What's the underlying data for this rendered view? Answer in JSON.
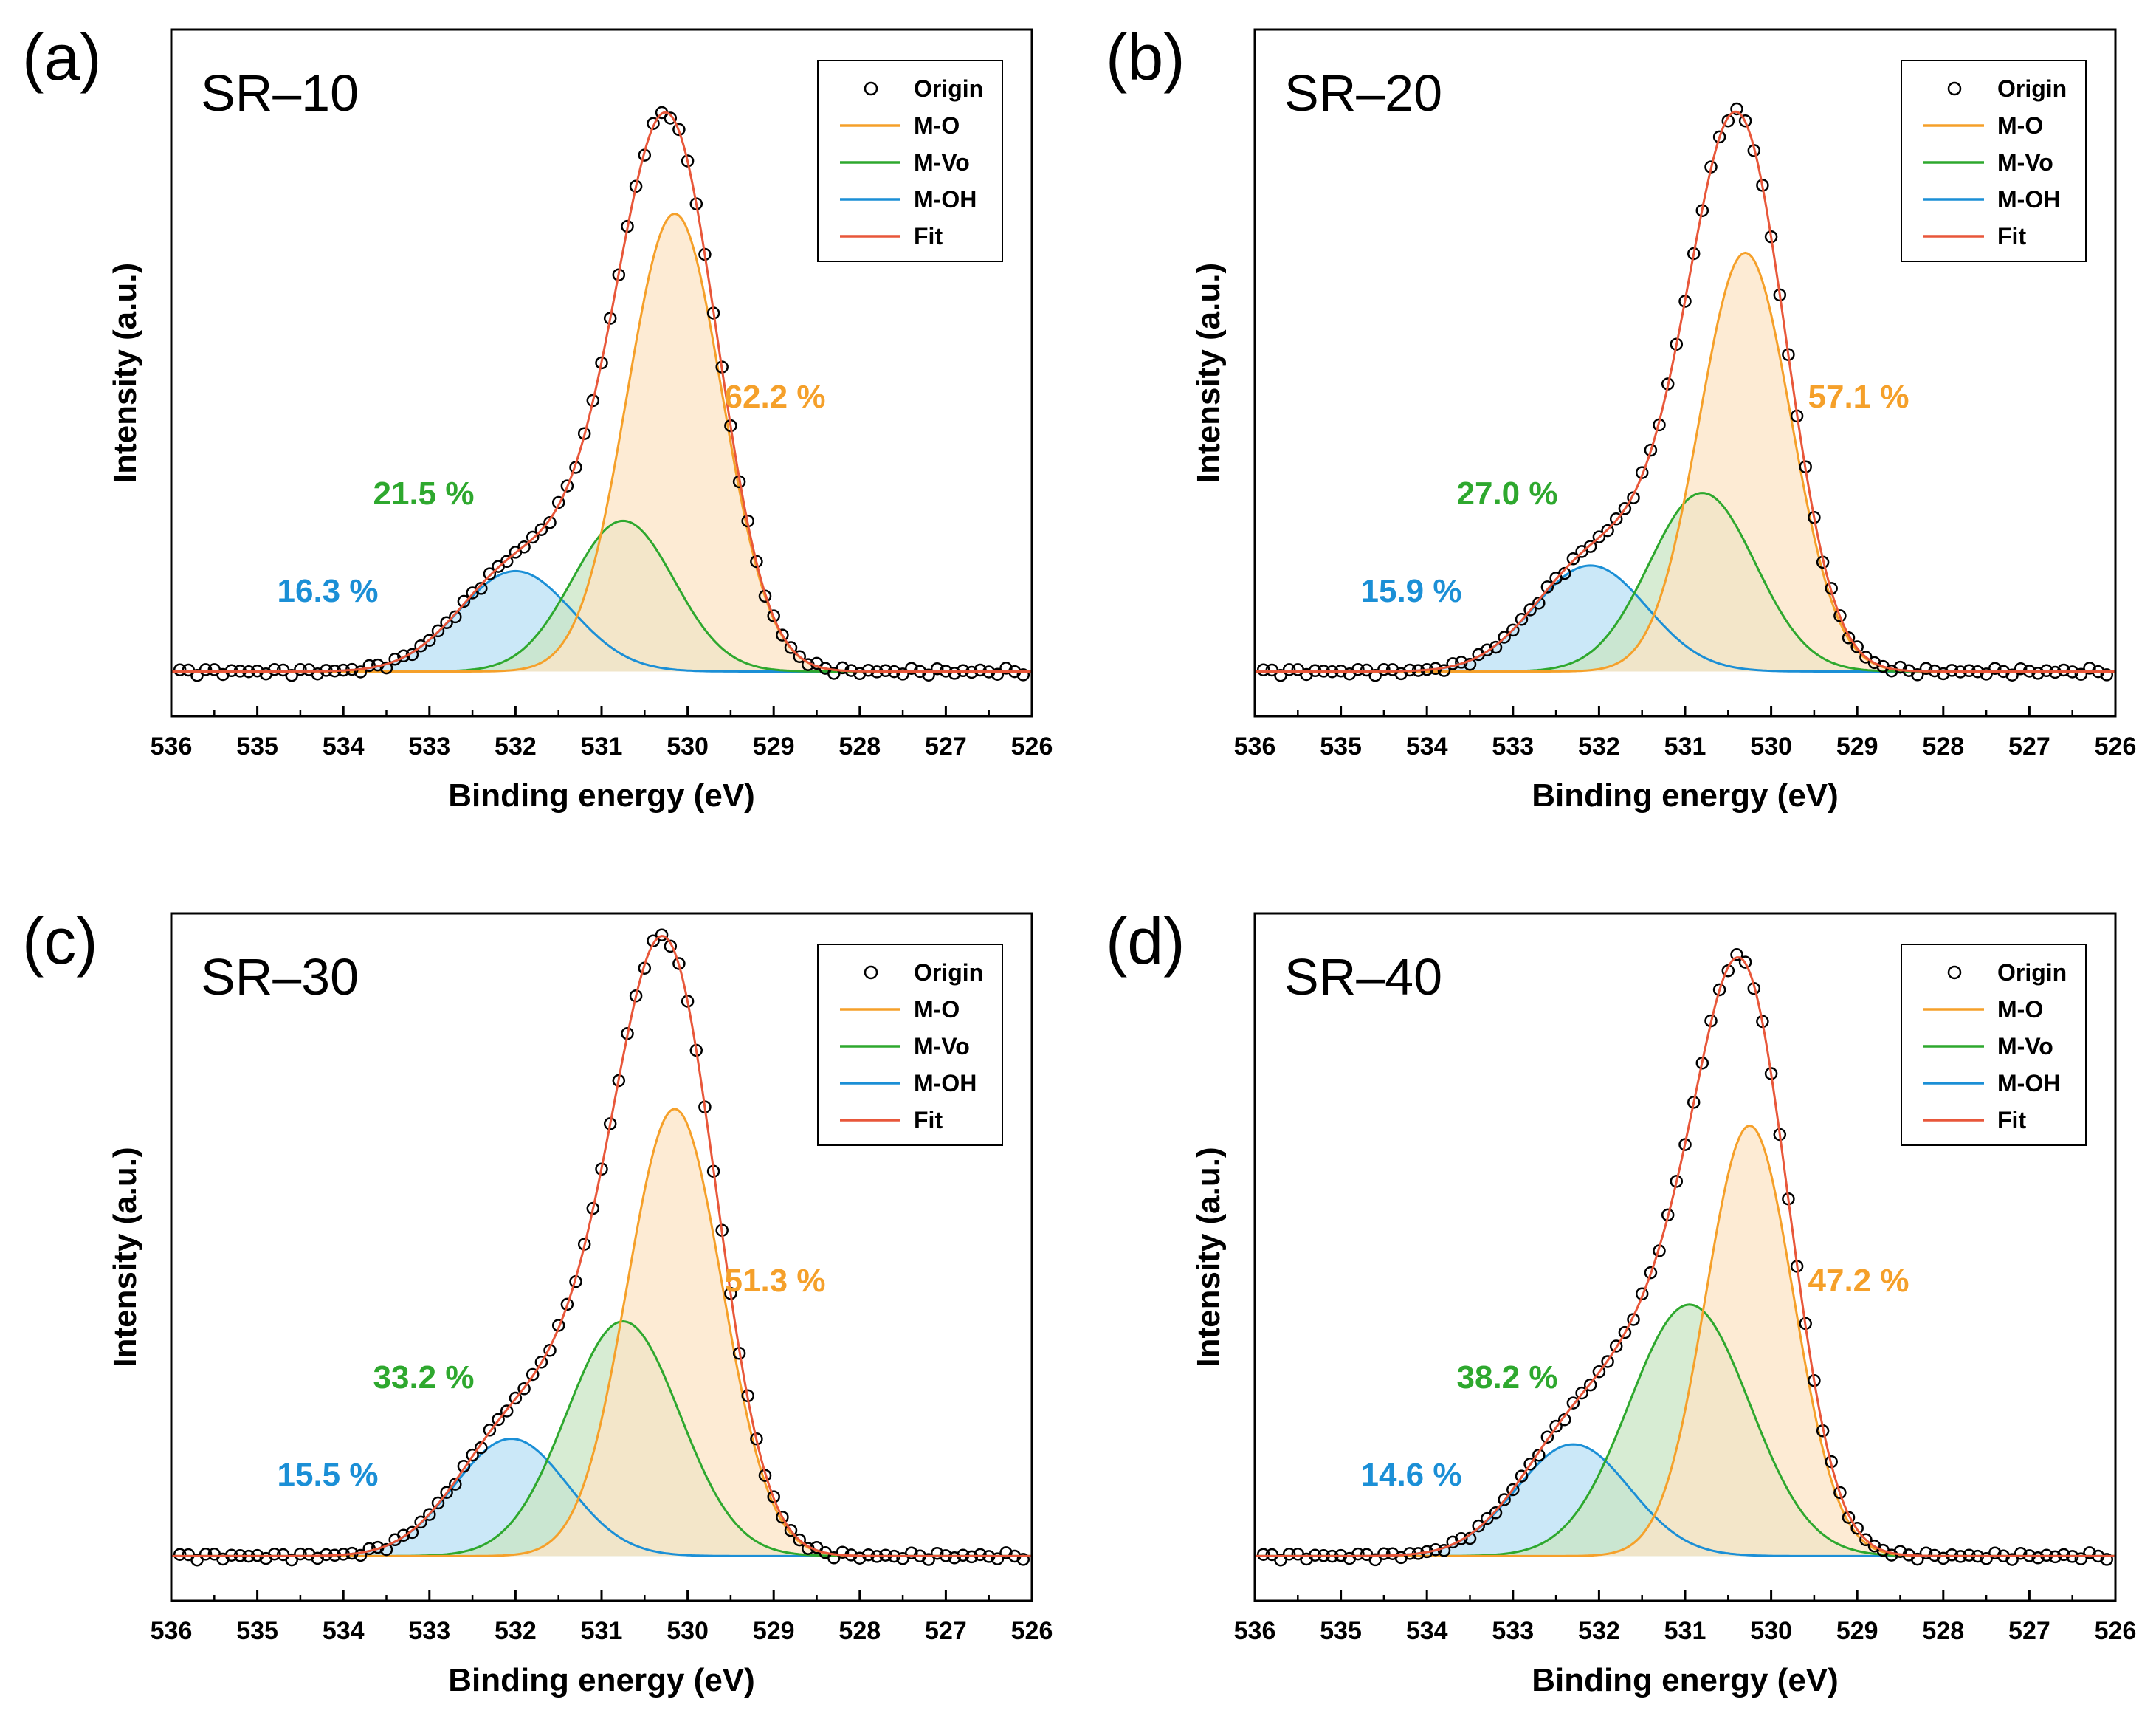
{
  "colors": {
    "m_o": "#F5A02A",
    "m_vo": "#2EA82E",
    "m_oh": "#1B8FD6",
    "fit": "#E8573A",
    "origin": "#000000",
    "fill_m_o": "#FCE4C6",
    "fill_m_vo": "#C9E6C4",
    "fill_m_oh": "#B9E0F5"
  },
  "legend": [
    "Origin",
    "M-O",
    "M-Vo",
    "M-OH",
    "Fit"
  ],
  "chart_data": [
    {
      "type": "line",
      "panel": "(a)",
      "sample": "SR–10",
      "xlabel": "Binding energy (eV)",
      "ylabel": "Intensity (a.u.)",
      "xlim": [
        536,
        526
      ],
      "ylim": [
        -0.08,
        1.15
      ],
      "xticks": [
        536,
        535,
        534,
        533,
        532,
        531,
        530,
        529,
        528,
        527,
        526
      ],
      "peaks": {
        "m_o": {
          "center": 530.15,
          "height": 0.82,
          "fwhm": 1.3
        },
        "m_vo": {
          "center": 530.75,
          "height": 0.27,
          "fwhm": 1.4
        },
        "m_oh": {
          "center": 532.0,
          "height": 0.18,
          "fwhm": 1.55
        }
      },
      "labels": {
        "m_o": "62.2 %",
        "m_vo": "21.5 %",
        "m_oh": "16.3 %"
      }
    },
    {
      "type": "line",
      "panel": "(b)",
      "sample": "SR–20",
      "xlabel": "Binding energy (eV)",
      "ylabel": "Intensity (a.u.)",
      "xlim": [
        536,
        526
      ],
      "ylim": [
        -0.08,
        1.15
      ],
      "xticks": [
        536,
        535,
        534,
        533,
        532,
        531,
        530,
        529,
        528,
        527,
        526
      ],
      "peaks": {
        "m_o": {
          "center": 530.3,
          "height": 0.75,
          "fwhm": 1.25
        },
        "m_vo": {
          "center": 530.8,
          "height": 0.32,
          "fwhm": 1.45
        },
        "m_oh": {
          "center": 532.1,
          "height": 0.19,
          "fwhm": 1.55
        }
      },
      "labels": {
        "m_o": "57.1 %",
        "m_vo": "27.0 %",
        "m_oh": "15.9 %"
      }
    },
    {
      "type": "line",
      "panel": "(c)",
      "sample": "SR–30",
      "xlabel": "Binding energy (eV)",
      "ylabel": "Intensity (a.u.)",
      "xlim": [
        536,
        526
      ],
      "ylim": [
        -0.08,
        1.15
      ],
      "xticks": [
        536,
        535,
        534,
        533,
        532,
        531,
        530,
        529,
        528,
        527,
        526
      ],
      "peaks": {
        "m_o": {
          "center": 530.15,
          "height": 0.8,
          "fwhm": 1.3
        },
        "m_vo": {
          "center": 530.75,
          "height": 0.42,
          "fwhm": 1.55
        },
        "m_oh": {
          "center": 532.05,
          "height": 0.21,
          "fwhm": 1.55
        }
      },
      "labels": {
        "m_o": "51.3 %",
        "m_vo": "33.2 %",
        "m_oh": "15.5 %"
      }
    },
    {
      "type": "line",
      "panel": "(d)",
      "sample": "SR–40",
      "xlabel": "Binding energy (eV)",
      "ylabel": "Intensity (a.u.)",
      "xlim": [
        536,
        526
      ],
      "ylim": [
        -0.08,
        1.15
      ],
      "xticks": [
        536,
        535,
        534,
        533,
        532,
        531,
        530,
        529,
        528,
        527,
        526
      ],
      "peaks": {
        "m_o": {
          "center": 530.25,
          "height": 0.77,
          "fwhm": 1.2
        },
        "m_vo": {
          "center": 530.95,
          "height": 0.45,
          "fwhm": 1.65
        },
        "m_oh": {
          "center": 532.3,
          "height": 0.2,
          "fwhm": 1.55
        }
      },
      "labels": {
        "m_o": "47.2 %",
        "m_vo": "38.2 %",
        "m_oh": "14.6 %"
      }
    }
  ]
}
